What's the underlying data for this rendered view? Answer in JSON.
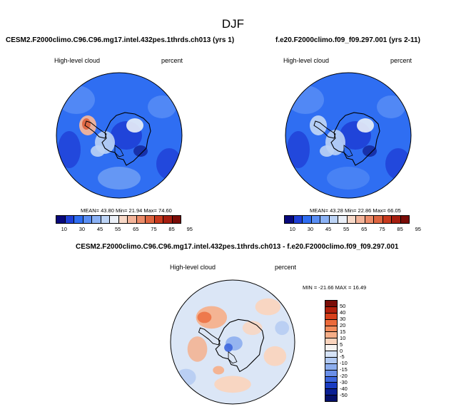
{
  "title": "DJF",
  "panels": [
    {
      "run_label": "CESM2.F2000climo.C96.C96.mg17.intel.432pes.1thrds.ch013 (yrs 1)",
      "field": "High-level cloud",
      "units": "percent",
      "stats": "MEAN= 43.80 Min= 21.94 Max= 74.60"
    },
    {
      "run_label": "f.e20.F2000climo.f09_f09.297.001 (yrs 2-11)",
      "field": "High-level cloud",
      "units": "percent",
      "stats": "MEAN= 43.28 Min= 22.86 Max= 66.05"
    },
    {
      "run_label": "CESM2.F2000climo.C96.C96.mg17.intel.432pes.1thrds.ch013 - f.e20.F2000climo.f09_f09.297.001",
      "field": "High-level cloud",
      "units": "percent",
      "stats": "MIN = -21.66 MAX = 16.49"
    }
  ],
  "colorbar_abs": {
    "labels": [
      "10",
      "30",
      "45",
      "55",
      "65",
      "75",
      "85",
      "95"
    ],
    "colors": [
      "#08087a",
      "#1f3fd6",
      "#2f6ef2",
      "#5a8ff5",
      "#8bb2f5",
      "#bcd3f5",
      "#eaeff7",
      "#f8d9c8",
      "#f3b49a",
      "#ec8c6a",
      "#dd6540",
      "#c83a1e",
      "#a51e10",
      "#7a0d08"
    ]
  },
  "colorbar_diff": {
    "labels": [
      "50",
      "40",
      "30",
      "20",
      "15",
      "10",
      "5",
      "0",
      "-5",
      "-10",
      "-15",
      "-20",
      "-30",
      "-40",
      "-50"
    ],
    "colors": [
      "#7a0d08",
      "#b3200d",
      "#d8401c",
      "#ec6a3b",
      "#f38c5c",
      "#f6ae88",
      "#fbd4bd",
      "#f7f3f1",
      "#d6e3f7",
      "#b1c9f3",
      "#8daeef",
      "#6a8fe8",
      "#3d66dd",
      "#1a3cc2",
      "#0a1f94",
      "#05106a"
    ]
  },
  "colors": {
    "map_base_abs": "#2f6ef2",
    "map_base_diff": "#dbe6f6",
    "coast": "#000000"
  }
}
